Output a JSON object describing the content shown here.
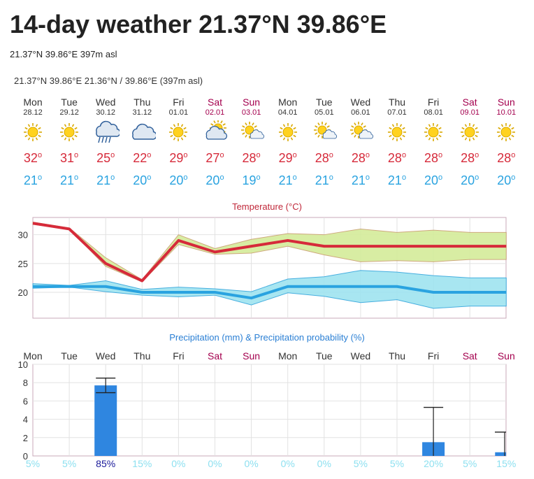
{
  "header": {
    "title": "14-day weather 21.37°N 39.86°E",
    "subtitle": "21.37°N 39.86°E 397m asl",
    "location_line": "21.37°N 39.86°E  21.36°N / 39.86°E (397m asl)"
  },
  "days": [
    {
      "name": "Mon",
      "date": "28.12",
      "weekend": false,
      "icon": "sun-icon",
      "max": "32",
      "min": "21"
    },
    {
      "name": "Tue",
      "date": "29.12",
      "weekend": false,
      "icon": "sun-icon",
      "max": "31",
      "min": "21"
    },
    {
      "name": "Wed",
      "date": "30.12",
      "weekend": false,
      "icon": "rain-cloud-icon",
      "max": "25",
      "min": "21"
    },
    {
      "name": "Thu",
      "date": "31.12",
      "weekend": false,
      "icon": "cloud-icon",
      "max": "22",
      "min": "20"
    },
    {
      "name": "Fri",
      "date": "01.01",
      "weekend": false,
      "icon": "sun-icon",
      "max": "29",
      "min": "20"
    },
    {
      "name": "Sat",
      "date": "02.01",
      "weekend": true,
      "icon": "sun-cloud-icon",
      "max": "27",
      "min": "20"
    },
    {
      "name": "Sun",
      "date": "03.01",
      "weekend": true,
      "icon": "sun-small-cloud-icon",
      "max": "28",
      "min": "19"
    },
    {
      "name": "Mon",
      "date": "04.01",
      "weekend": false,
      "icon": "sun-icon",
      "max": "29",
      "min": "21"
    },
    {
      "name": "Tue",
      "date": "05.01",
      "weekend": false,
      "icon": "sun-small-cloud-icon",
      "max": "28",
      "min": "21"
    },
    {
      "name": "Wed",
      "date": "06.01",
      "weekend": false,
      "icon": "sun-small-cloud-icon",
      "max": "28",
      "min": "21"
    },
    {
      "name": "Thu",
      "date": "07.01",
      "weekend": false,
      "icon": "sun-icon",
      "max": "28",
      "min": "21"
    },
    {
      "name": "Fri",
      "date": "08.01",
      "weekend": false,
      "icon": "sun-icon",
      "max": "28",
      "min": "20"
    },
    {
      "name": "Sat",
      "date": "09.01",
      "weekend": true,
      "icon": "sun-icon",
      "max": "28",
      "min": "20"
    },
    {
      "name": "Sun",
      "date": "10.01",
      "weekend": true,
      "icon": "sun-icon",
      "max": "28",
      "min": "20"
    }
  ],
  "colors": {
    "max": "#d62a3a",
    "min": "#2aa3e0",
    "weekend": "#a4004e",
    "bar": "#2f86e0",
    "maxband": "#d4ec9a",
    "minband": "#9fe4f0"
  },
  "chart_data": [
    {
      "type": "line",
      "title": "Temperature (°C)",
      "ylim": [
        15.5,
        33
      ],
      "yticks": [
        20,
        25,
        30
      ],
      "categories": [
        "Mon",
        "Tue",
        "Wed",
        "Thu",
        "Fri",
        "Sat",
        "Sun",
        "Mon",
        "Tue",
        "Wed",
        "Thu",
        "Fri",
        "Sat",
        "Sun"
      ],
      "series": [
        {
          "values": [
            32,
            31,
            25,
            22,
            29,
            27,
            28,
            29,
            28,
            28,
            28,
            28,
            28,
            28
          ],
          "band_low": [
            31.8,
            31,
            24.5,
            21.8,
            28.3,
            26.6,
            26.8,
            28,
            26.5,
            25.3,
            25.5,
            25.3,
            25.7,
            25.7
          ],
          "band_high": [
            32.2,
            31.2,
            26,
            22.2,
            30,
            27.6,
            29.2,
            30.2,
            30,
            31,
            30.4,
            30.8,
            30.4,
            30.4
          ]
        },
        {
          "values": [
            21,
            21,
            21,
            20,
            20,
            20,
            19,
            21,
            21,
            21,
            21,
            20,
            20,
            20
          ],
          "band_low": [
            20.7,
            20.9,
            20.1,
            19.5,
            19.2,
            19.5,
            17.8,
            19.9,
            19.3,
            18.2,
            18.7,
            17.2,
            17.6,
            17.6
          ],
          "band_high": [
            21.5,
            21.2,
            22,
            20.5,
            20.9,
            20.6,
            20.1,
            22.3,
            22.7,
            23.8,
            23.5,
            22.9,
            22.5,
            22.5
          ]
        }
      ]
    },
    {
      "type": "bar",
      "title": "Precipitation (mm) & Precipitation probability (%)",
      "ylim": [
        0,
        10
      ],
      "yticks": [
        0,
        2,
        4,
        6,
        8,
        10
      ],
      "categories": [
        "Mon",
        "Tue",
        "Wed",
        "Thu",
        "Fri",
        "Sat",
        "Sun",
        "Mon",
        "Tue",
        "Wed",
        "Thu",
        "Fri",
        "Sat",
        "Sun"
      ],
      "values": [
        0,
        0,
        7.7,
        0,
        0,
        0,
        0,
        0,
        0,
        0,
        0,
        1.5,
        0,
        0.4
      ],
      "error_low": [
        null,
        null,
        6.9,
        null,
        null,
        null,
        null,
        null,
        null,
        null,
        null,
        0,
        null,
        0
      ],
      "error_high": [
        null,
        null,
        8.5,
        null,
        null,
        null,
        null,
        null,
        null,
        null,
        null,
        5.3,
        null,
        2.6
      ],
      "probability": [
        "5%",
        "5%",
        "85%",
        "15%",
        "0%",
        "0%",
        "0%",
        "0%",
        "0%",
        "5%",
        "5%",
        "20%",
        "5%",
        "15%"
      ]
    }
  ]
}
